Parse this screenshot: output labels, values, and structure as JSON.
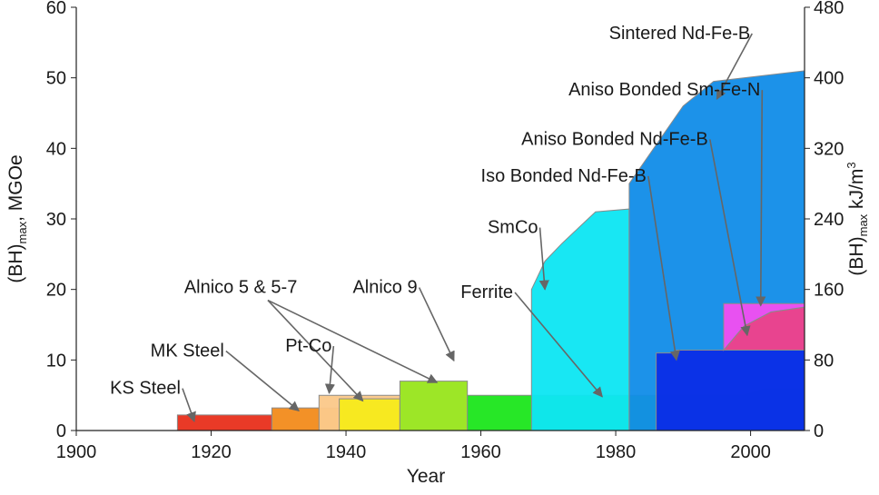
{
  "chart_data": {
    "type": "area",
    "xlabel": "Year",
    "ylabel_left": {
      "base": "(BH)",
      "sub": "max",
      "unit": ", MGOe"
    },
    "ylabel_right": {
      "base": "(BH)",
      "sub": "max",
      "unit": " kJ/m",
      "sup": "3"
    },
    "xlim": [
      1900,
      2008
    ],
    "ylim_left": [
      0,
      60
    ],
    "ylim_right": [
      0,
      480
    ],
    "x_ticks": [
      "1900",
      "1920",
      "1940",
      "1960",
      "1980",
      "2000"
    ],
    "y_ticks_left": [
      "0",
      "10",
      "20",
      "30",
      "40",
      "50",
      "60"
    ],
    "y_ticks_right": [
      "0",
      "80",
      "160",
      "240",
      "320",
      "400",
      "480"
    ],
    "grid": false,
    "series": [
      {
        "name": "KS Steel",
        "color": "#e8321e",
        "points": [
          [
            1915,
            0
          ],
          [
            1915,
            2.2
          ],
          [
            1929,
            2.2
          ],
          [
            1929,
            0
          ]
        ],
        "label_xy": [
          1905,
          5.2
        ],
        "arrow_to": [
          1917.5,
          1.3
        ]
      },
      {
        "name": "MK Steel",
        "color": "#f28c1e",
        "points": [
          [
            1929,
            0
          ],
          [
            1929,
            3.2
          ],
          [
            1948,
            3.2
          ],
          [
            1948,
            0
          ]
        ],
        "label_xy": [
          1911,
          10.5
        ],
        "arrow_to": [
          1933,
          2.8
        ]
      },
      {
        "name": "Pt-Co",
        "color": "#fbc98a",
        "points": [
          [
            1936,
            0
          ],
          [
            1936,
            5
          ],
          [
            1948,
            5
          ],
          [
            1948,
            0
          ]
        ],
        "label_xy": [
          1931,
          11.2
        ],
        "arrow_to": [
          1937.5,
          5.3
        ]
      },
      {
        "name": "Alnico 5 & 5-7",
        "color": "#f7ea1c",
        "points": [
          [
            1939,
            0
          ],
          [
            1939,
            4.5
          ],
          [
            1948,
            4.5
          ],
          [
            1948,
            0
          ]
        ],
        "label_xy": [
          1916,
          19.5
        ],
        "arrow_to": [
          1942.5,
          4.2
        ],
        "arrow_to2": [
          1953.5,
          6.8
        ]
      },
      {
        "name": "Alnico 9",
        "color": "#99e51e",
        "points": [
          [
            1948,
            0
          ],
          [
            1948,
            7
          ],
          [
            1958,
            7
          ],
          [
            1958,
            0
          ]
        ],
        "label_xy": [
          1941,
          19.5
        ],
        "arrow_to": [
          1956,
          9.9
        ]
      },
      {
        "name": "Ferrite",
        "color": "#1ee61e",
        "points": [
          [
            1958,
            0
          ],
          [
            1958,
            5
          ],
          [
            1999,
            5
          ],
          [
            2002,
            5.9
          ],
          [
            2008,
            5.9
          ],
          [
            2008,
            0
          ]
        ],
        "label_xy": [
          1957,
          18.8
        ],
        "arrow_to": [
          1978,
          4.8
        ]
      },
      {
        "name": "SmCo",
        "color": "#0fe6f2",
        "points": [
          [
            1967.5,
            0
          ],
          [
            1967.5,
            20
          ],
          [
            1969.5,
            24
          ],
          [
            1972,
            26.5
          ],
          [
            1977,
            31
          ],
          [
            1982,
            31.4
          ],
          [
            1982,
            0
          ]
        ],
        "label_xy": [
          1961,
          28
        ],
        "arrow_to": [
          1969.5,
          20
        ]
      },
      {
        "name": "Sintered Nd-Fe-B",
        "color": "#138ee8",
        "points": [
          [
            1982,
            0
          ],
          [
            1982,
            35
          ],
          [
            1990,
            46
          ],
          [
            1994.5,
            49.5
          ],
          [
            2008,
            51
          ],
          [
            2008,
            0
          ]
        ],
        "label_xy": [
          1979,
          55.5
        ],
        "arrow_to": [
          1995,
          47
        ]
      },
      {
        "name": "Iso Bonded Nd-Fe-B",
        "color": "#0a2ee6",
        "points": [
          [
            1986,
            0
          ],
          [
            1986,
            11
          ],
          [
            1989,
            11
          ],
          [
            1989,
            11.4
          ],
          [
            2008,
            11.4
          ],
          [
            2008,
            0
          ]
        ],
        "label_xy": [
          1960,
          35.3
        ],
        "arrow_to": [
          1989,
          10
        ]
      },
      {
        "name": "Aniso Bonded Nd-Fe-B",
        "color": "#f0418a",
        "points": [
          [
            1996,
            11.4
          ],
          [
            1999,
            14.8
          ],
          [
            2003,
            16.8
          ],
          [
            2008,
            17.5
          ],
          [
            2008,
            11.4
          ]
        ],
        "label_xy": [
          1966,
          40.5
        ],
        "arrow_to": [
          1999.5,
          13.5
        ]
      },
      {
        "name": "Aniso Bonded Sm-Fe-N",
        "color": "#f04ef0",
        "points": [
          [
            1996,
            11.4
          ],
          [
            1996,
            18
          ],
          [
            2008,
            18
          ],
          [
            2008,
            17.5
          ],
          [
            2003,
            16.8
          ],
          [
            1999,
            14.8
          ]
        ],
        "label_xy": [
          1973,
          47.5
        ],
        "arrow_to": [
          2001.5,
          17.7
        ]
      }
    ]
  }
}
